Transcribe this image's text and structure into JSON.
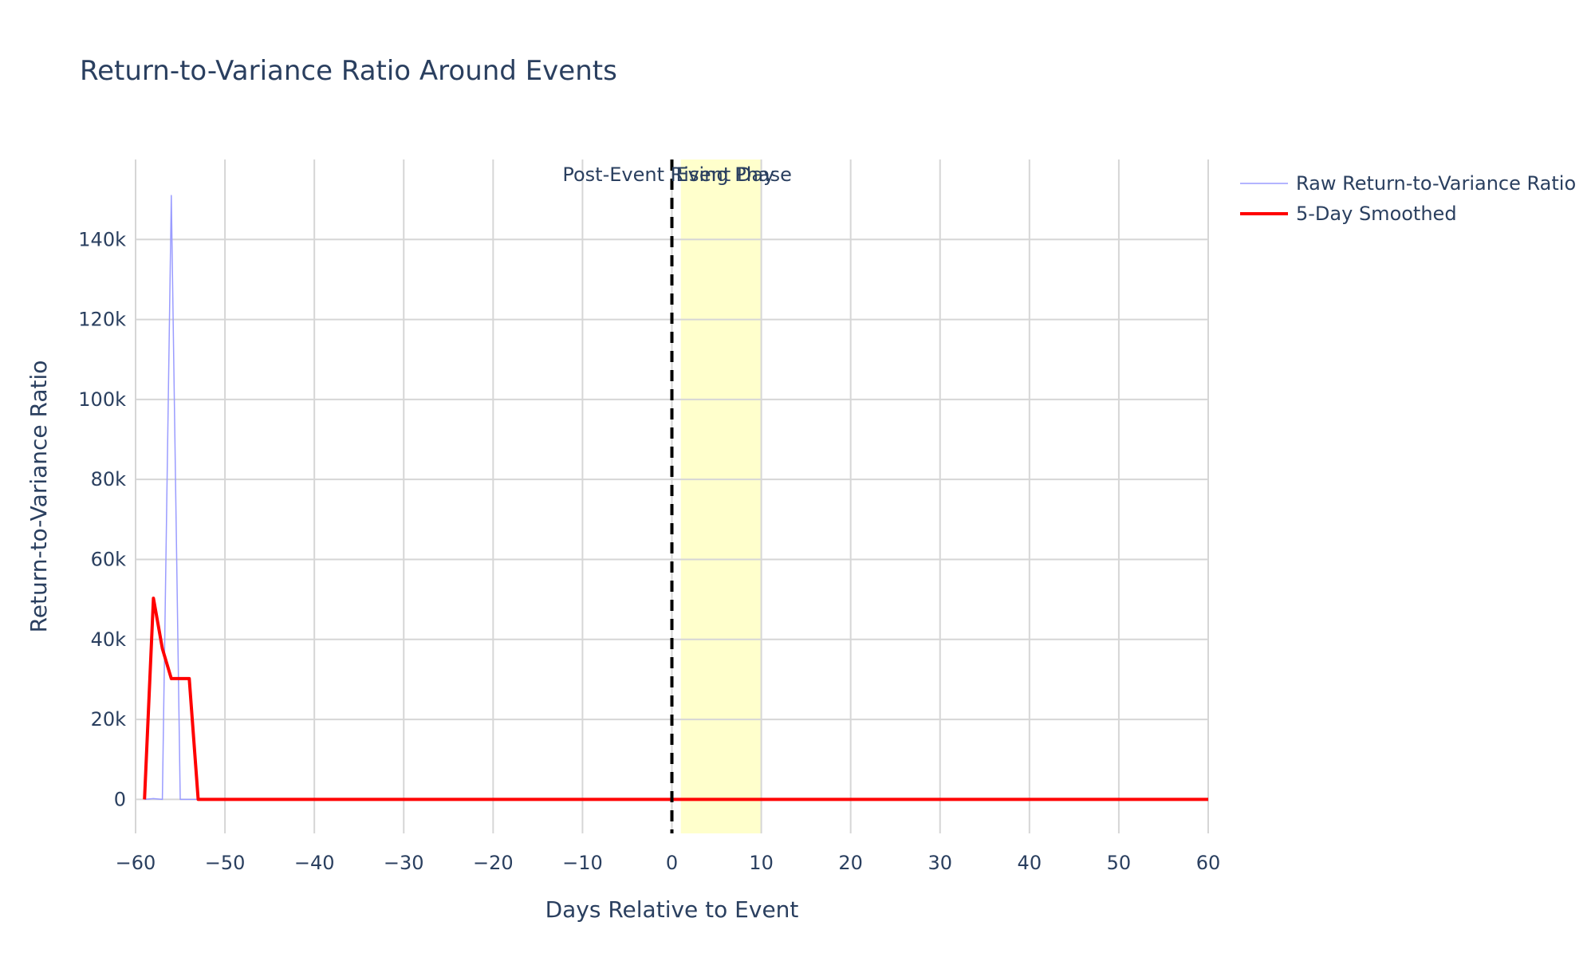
{
  "chart_data": {
    "type": "line",
    "title": "Return-to-Variance Ratio Around Events",
    "xlabel": "Days Relative to Event",
    "ylabel": "Return-to-Variance Ratio",
    "xlim": [
      -60,
      60
    ],
    "ylim": [
      -8500,
      160000
    ],
    "x_ticks": [
      -60,
      -50,
      -40,
      -30,
      -20,
      -10,
      0,
      10,
      20,
      30,
      40,
      50,
      60
    ],
    "x_tick_labels": [
      "−60",
      "−50",
      "−40",
      "−30",
      "−20",
      "−10",
      "0",
      "10",
      "20",
      "30",
      "40",
      "50",
      "60"
    ],
    "y_ticks": [
      0,
      20000,
      40000,
      60000,
      80000,
      100000,
      120000,
      140000
    ],
    "y_tick_labels": [
      "0",
      "20k",
      "40k",
      "60k",
      "80k",
      "100k",
      "120k",
      "140k"
    ],
    "grid": true,
    "legend_position": "top-right",
    "series": [
      {
        "name": "Raw Return-to-Variance Ratio",
        "color": "#9a9cff",
        "x": [
          -59,
          -58,
          -57,
          -56,
          -55,
          -54,
          -53,
          -52,
          -40,
          -20,
          0,
          20,
          40,
          60
        ],
        "y": [
          0,
          200,
          0,
          151000,
          0,
          0,
          0,
          0,
          0,
          0,
          0,
          0,
          0,
          0
        ]
      },
      {
        "name": "5-Day Smoothed",
        "color": "#ff0000",
        "x": [
          -59,
          -58,
          -57,
          -56,
          -55,
          -54,
          -53,
          -52,
          -40,
          -20,
          0,
          20,
          40,
          60
        ],
        "y": [
          0,
          50300,
          37700,
          30200,
          30200,
          30200,
          0,
          0,
          0,
          0,
          0,
          0,
          0,
          0
        ]
      }
    ],
    "event_line": {
      "x": 0,
      "label": "Event Day",
      "color": "#000000"
    },
    "shaded_region": {
      "x0": 1,
      "x1": 10,
      "label": "Post-Event Rising Phase",
      "color": "#ffff99"
    }
  }
}
